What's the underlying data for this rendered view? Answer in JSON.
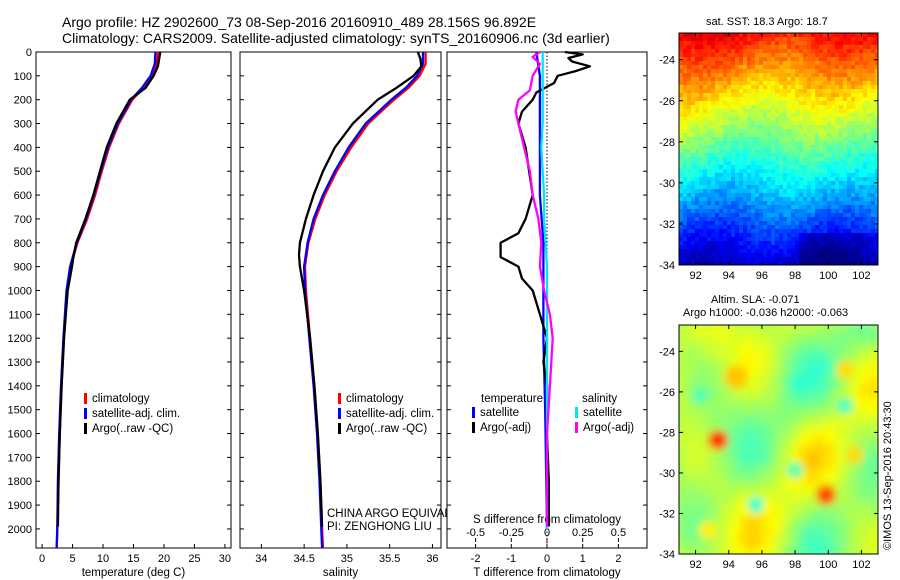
{
  "header": {
    "line1": "Argo profile: HZ 2902600_73 08-Sep-2016 20160910_489 28.156S 96.892E",
    "line2": "Climatology: CARS2009. Satellite-adjusted climatology: synTS_20160906.nc (3d earlier)"
  },
  "colors": {
    "climatology": "#ff0000",
    "satellite": "#0000ff",
    "argo": "#000000",
    "sat_salinity": "#00e5ee",
    "argo_salinity": "#ff00ff"
  },
  "panels": {
    "temperature": {
      "xlabel": "temperature (deg C)",
      "xticks": [
        "0",
        "5",
        "10",
        "15",
        "20",
        "25",
        "30"
      ],
      "legend": [
        "climatology",
        "satellite-adj. clim.",
        "Argo(..raw -QC)"
      ]
    },
    "salinity": {
      "xlabel": "salinity",
      "xticks": [
        "34",
        "34.5",
        "35",
        "35.5",
        "36"
      ],
      "legend": [
        "climatology",
        "satellite-adj. clim.",
        "Argo(..raw -QC)"
      ],
      "note1": "CHINA ARGO EQUIVALENT",
      "note2": "PI: ZENGHONG LIU"
    },
    "difference": {
      "xlabel": "T difference from climatology",
      "xlabel2": "S difference from climatology",
      "xticks": [
        "-2",
        "-1",
        "0",
        "1",
        "2"
      ],
      "xticks2": [
        "-0.5",
        "-0.25",
        "0",
        "0.25",
        "0.5"
      ],
      "legend_head_t": "temperature",
      "legend_head_s": "salinity",
      "legend_t": [
        "satellite",
        "Argo(-adj)"
      ],
      "legend_s": [
        "satellite",
        "Argo(-adj)"
      ]
    }
  },
  "depth_ticks": [
    "0",
    "100",
    "200",
    "300",
    "400",
    "500",
    "600",
    "700",
    "800",
    "900",
    "1000",
    "1100",
    "1200",
    "1300",
    "1400",
    "1500",
    "1600",
    "1700",
    "1800",
    "1900",
    "2000"
  ],
  "maps": {
    "sst_title": "sat. SST: 18.3 Argo: 18.7",
    "sla_title1": "Altim. SLA: -0.071",
    "sla_title2": "Argo h1000: -0.036 h2000: -0.063",
    "lat_ticks": [
      "-24",
      "-26",
      "-28",
      "-30",
      "-32",
      "-34"
    ],
    "lon_ticks": [
      "92",
      "94",
      "96",
      "98",
      "100",
      "102"
    ],
    "credit": "©IMOS 13-Sep-2016 20:43:30"
  },
  "chart_data": [
    {
      "type": "line",
      "panel": "temperature",
      "xlabel": "temperature (deg C)",
      "xlim": [
        -1,
        31
      ],
      "ylim": [
        2080,
        0
      ],
      "series": [
        {
          "name": "climatology",
          "depth": [
            0,
            50,
            100,
            150,
            200,
            300,
            400,
            500,
            600,
            700,
            800,
            900,
            1000,
            1200,
            1400,
            1600,
            1800,
            2000,
            2080
          ],
          "values": [
            19.0,
            18.8,
            18.0,
            16.6,
            14.8,
            12.6,
            11.0,
            9.8,
            8.7,
            7.4,
            5.8,
            4.7,
            4.1,
            3.6,
            3.2,
            2.9,
            2.7,
            2.5,
            2.4
          ]
        },
        {
          "name": "satellite-adj. clim.",
          "depth": [
            0,
            50,
            100,
            150,
            200,
            300,
            400,
            500,
            600,
            700,
            800,
            900,
            1000,
            1200,
            1400,
            1600,
            1800,
            2000,
            2080
          ],
          "values": [
            18.6,
            18.5,
            17.8,
            16.4,
            14.6,
            12.4,
            10.8,
            9.6,
            8.5,
            7.2,
            5.7,
            4.6,
            4.0,
            3.5,
            3.1,
            2.8,
            2.6,
            2.5,
            2.4
          ]
        },
        {
          "name": "Argo(..raw -QC)",
          "depth": [
            0,
            30,
            60,
            100,
            150,
            200,
            300,
            400,
            500,
            600,
            700,
            800,
            850,
            900,
            1000,
            1200,
            1400,
            1600,
            1800,
            1990
          ],
          "values": [
            19.4,
            19.2,
            19.0,
            18.3,
            17.0,
            14.4,
            12.2,
            10.6,
            9.5,
            8.4,
            7.1,
            5.6,
            5.2,
            4.9,
            4.2,
            3.6,
            3.2,
            2.9,
            2.7,
            2.6
          ]
        }
      ]
    },
    {
      "type": "line",
      "panel": "salinity",
      "xlabel": "salinity",
      "xlim": [
        33.75,
        36.1
      ],
      "ylim": [
        2080,
        0
      ],
      "series": [
        {
          "name": "climatology",
          "depth": [
            0,
            50,
            100,
            150,
            200,
            300,
            400,
            500,
            600,
            700,
            800,
            900,
            1000,
            1200,
            1400,
            1600,
            1800,
            2000,
            2080
          ],
          "values": [
            35.92,
            35.92,
            35.85,
            35.72,
            35.55,
            35.25,
            35.05,
            34.88,
            34.74,
            34.63,
            34.55,
            34.51,
            34.52,
            34.57,
            34.62,
            34.66,
            34.69,
            34.71,
            34.72
          ]
        },
        {
          "name": "satellite-adj. clim.",
          "depth": [
            0,
            50,
            100,
            150,
            200,
            300,
            400,
            500,
            600,
            700,
            800,
            900,
            1000,
            1200,
            1400,
            1600,
            1800,
            2000,
            2080
          ],
          "values": [
            35.89,
            35.89,
            35.82,
            35.69,
            35.52,
            35.22,
            35.02,
            34.86,
            34.72,
            34.61,
            34.54,
            34.5,
            34.51,
            34.56,
            34.61,
            34.65,
            34.68,
            34.7,
            34.71
          ]
        },
        {
          "name": "Argo(..raw -QC)",
          "depth": [
            0,
            30,
            60,
            100,
            150,
            200,
            300,
            400,
            500,
            600,
            700,
            800,
            850,
            900,
            1000,
            1200,
            1400,
            1600,
            1800,
            1990
          ],
          "values": [
            35.83,
            35.86,
            35.87,
            35.78,
            35.58,
            35.36,
            35.07,
            34.86,
            34.72,
            34.61,
            34.52,
            34.45,
            34.44,
            34.45,
            34.5,
            34.57,
            34.62,
            34.66,
            34.69,
            34.71
          ]
        }
      ]
    },
    {
      "type": "line",
      "panel": "difference",
      "xlabel": "T difference from climatology",
      "xlabel2": "S difference from climatology",
      "xlim": [
        -2.8,
        2.8
      ],
      "xlim2": [
        -0.7,
        0.7
      ],
      "ylim": [
        2080,
        0
      ],
      "series": [
        {
          "name": "satellite",
          "variable": "temperature",
          "depth": [
            0,
            100,
            200,
            300,
            400,
            600,
            800,
            1000,
            1200,
            1500,
            2000
          ],
          "values": [
            -0.3,
            -0.2,
            -0.2,
            -0.2,
            -0.2,
            -0.2,
            -0.1,
            -0.1,
            -0.1,
            -0.05,
            0
          ]
        },
        {
          "name": "Argo(-adj)",
          "variable": "temperature",
          "depth": [
            0,
            10,
            25,
            40,
            60,
            80,
            100,
            130,
            170,
            200,
            250,
            300,
            400,
            500,
            600,
            700,
            760,
            800,
            860,
            900,
            950,
            1000,
            1100,
            1200,
            1300,
            1400,
            1600,
            1800,
            1990
          ],
          "values": [
            0.5,
            1.0,
            0.6,
            0.7,
            1.2,
            0.8,
            0.3,
            0.2,
            -0.3,
            -0.4,
            -0.7,
            -0.8,
            -0.6,
            -0.5,
            -0.4,
            -0.6,
            -0.8,
            -1.3,
            -1.3,
            -0.8,
            -0.7,
            -0.4,
            -0.2,
            0,
            -0.1,
            0,
            0,
            0.05,
            0.05
          ]
        },
        {
          "name": "satellite",
          "variable": "salinity",
          "depth": [
            0,
            100,
            200,
            300,
            400,
            500,
            600,
            700,
            800,
            900,
            1000,
            1200,
            1500,
            2000
          ],
          "values": [
            -0.03,
            -0.03,
            -0.03,
            -0.03,
            -0.04,
            -0.03,
            -0.02,
            -0.02,
            -0.01,
            0,
            0,
            0,
            0,
            0
          ]
        },
        {
          "name": "Argo(-adj)",
          "variable": "salinity",
          "depth": [
            0,
            20,
            50,
            100,
            160,
            200,
            250,
            300,
            400,
            500,
            600,
            700,
            800,
            900,
            1000,
            1100,
            1200,
            1300,
            1400,
            1600,
            1800,
            1990
          ],
          "values": [
            -0.05,
            -0.1,
            -0.05,
            -0.1,
            -0.12,
            -0.2,
            -0.22,
            -0.2,
            -0.16,
            -0.12,
            -0.1,
            -0.06,
            -0.04,
            -0.05,
            -0.02,
            0.02,
            0.04,
            0.03,
            0.02,
            0,
            0,
            0
          ]
        }
      ]
    },
    {
      "type": "heatmap",
      "panel": "sst_map",
      "title": "sat. SST: 18.3 Argo: 18.7",
      "xlim": [
        91,
        103
      ],
      "ylim": [
        -34,
        -22.7
      ],
      "xticks": [
        92,
        94,
        96,
        98,
        100,
        102
      ],
      "yticks": [
        -24,
        -26,
        -28,
        -30,
        -32,
        -34
      ]
    },
    {
      "type": "heatmap",
      "panel": "sla_map",
      "title": "Altim. SLA: -0.071",
      "xlim": [
        91,
        103
      ],
      "ylim": [
        -34,
        -22.7
      ],
      "xticks": [
        92,
        94,
        96,
        98,
        100,
        102
      ],
      "yticks": [
        -24,
        -26,
        -28,
        -30,
        -32,
        -34
      ]
    }
  ]
}
